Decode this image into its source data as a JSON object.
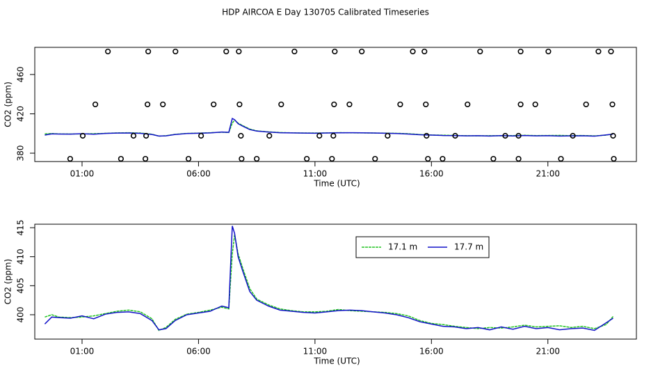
{
  "chart_data": [
    {
      "type": "line",
      "title": "HDP AIRCOA E  Day 130705  Calibrated Timeseries",
      "x_label": "Time (UTC)",
      "y_label": "CO2 (ppm)",
      "xlim": [
        -1.03,
        24.8
      ],
      "xticks": [
        {
          "value": 1,
          "label": "01:00"
        },
        {
          "value": 6,
          "label": "06:00"
        },
        {
          "value": 11,
          "label": "11:00"
        },
        {
          "value": 16,
          "label": "16:00"
        },
        {
          "value": 21,
          "label": "21:00"
        }
      ],
      "ylim": [
        371.5,
        487.6
      ],
      "yticks": [
        380,
        420,
        460
      ],
      "x": [
        -0.6,
        -0.3,
        0,
        0.5,
        1,
        1.5,
        2,
        2.5,
        3,
        3.5,
        4,
        4.3,
        4.6,
        5,
        5.5,
        6,
        6.5,
        7,
        7.3,
        7.45,
        7.55,
        7.7,
        7.9,
        8.2,
        8.5,
        9,
        9.5,
        10,
        10.5,
        11,
        11.5,
        12,
        12.5,
        13,
        13.5,
        14,
        14.5,
        15,
        15.5,
        16,
        16.5,
        17,
        17.5,
        18,
        18.5,
        19,
        19.5,
        20,
        20.5,
        21,
        21.5,
        22,
        22.5,
        23,
        23.5,
        23.8
      ],
      "series": [
        {
          "color": "#22c322",
          "values": [
            399.6,
            400.0,
            399.6,
            399.5,
            399.6,
            399.8,
            400.2,
            400.6,
            400.8,
            400.5,
            399.3,
            397.3,
            397.8,
            399.2,
            400.1,
            400.4,
            400.8,
            401.3,
            401.0,
            410.5,
            413.8,
            410.5,
            408.0,
            404.5,
            402.7,
            401.7,
            401.0,
            400.7,
            400.5,
            400.5,
            400.6,
            400.9,
            400.7,
            400.6,
            400.5,
            400.4,
            400.2,
            399.8,
            399.0,
            398.5,
            398.3,
            398.0,
            397.8,
            397.6,
            397.8,
            397.7,
            397.9,
            398.2,
            397.9,
            398.0,
            398.1,
            397.8,
            398.0,
            397.6,
            398.3,
            399.7
          ]
        },
        {
          "color": "#1010c8",
          "values": [
            398.4,
            399.6,
            399.5,
            399.4,
            399.8,
            399.3,
            400.1,
            400.4,
            400.5,
            400.2,
            399.0,
            397.4,
            397.6,
            399.0,
            400.0,
            400.3,
            400.6,
            401.5,
            401.2,
            415.3,
            414.0,
            410.0,
            407.5,
            404.0,
            402.5,
            401.5,
            400.8,
            400.6,
            400.4,
            400.3,
            400.5,
            400.7,
            400.8,
            400.7,
            400.5,
            400.3,
            400.0,
            399.5,
            398.8,
            398.4,
            398.0,
            397.9,
            397.6,
            397.8,
            397.4,
            397.9,
            397.5,
            398.0,
            397.6,
            397.8,
            397.4,
            397.6,
            397.7,
            397.3,
            398.6,
            399.4
          ]
        }
      ],
      "points": {
        "color": "#000000",
        "x": [
          2.11,
          3.84,
          5.01,
          7.19,
          7.73,
          10.12,
          11.85,
          13.01,
          15.2,
          15.7,
          18.09,
          19.83,
          21.02,
          23.17,
          23.71,
          1.57,
          3.81,
          4.47,
          6.65,
          7.76,
          9.55,
          11.82,
          12.48,
          14.66,
          15.76,
          17.55,
          19.83,
          20.46,
          22.64,
          23.77,
          1.03,
          3.21,
          3.75,
          6.11,
          7.82,
          9.04,
          11.19,
          11.79,
          14.12,
          15.79,
          17.02,
          19.17,
          19.74,
          22.07,
          23.8,
          0.49,
          2.67,
          3.72,
          5.57,
          7.85,
          8.5,
          10.65,
          11.73,
          13.58,
          15.85,
          16.48,
          18.66,
          19.74,
          21.56,
          23.83
        ],
        "y": [
          483.4,
          483.4,
          483.4,
          483.4,
          483.4,
          483.4,
          483.4,
          483.4,
          483.4,
          483.4,
          483.4,
          483.4,
          483.4,
          483.4,
          483.4,
          429.6,
          429.6,
          429.6,
          429.6,
          429.6,
          429.6,
          429.6,
          429.6,
          429.6,
          429.6,
          429.6,
          429.6,
          429.6,
          429.6,
          429.6,
          397.7,
          397.7,
          397.7,
          397.7,
          397.7,
          397.7,
          397.7,
          397.7,
          397.7,
          397.7,
          397.7,
          397.7,
          397.7,
          397.7,
          397.7,
          374.3,
          374.3,
          374.3,
          374.3,
          374.3,
          374.3,
          374.3,
          374.3,
          374.3,
          374.3,
          374.3,
          374.3,
          374.3,
          374.3,
          374.3
        ]
      }
    },
    {
      "type": "line",
      "x_label": "Time (UTC)",
      "y_label": "CO2 (ppm)",
      "legend": "top",
      "xlim": [
        -1.03,
        24.8
      ],
      "xticks": [
        {
          "value": 1,
          "label": "01:00"
        },
        {
          "value": 6,
          "label": "06:00"
        },
        {
          "value": 11,
          "label": "11:00"
        },
        {
          "value": 16,
          "label": "16:00"
        },
        {
          "value": 21,
          "label": "21:00"
        }
      ],
      "ylim": [
        395.8,
        415.6
      ],
      "yticks": [
        400,
        405,
        410,
        415
      ],
      "x": [
        -0.6,
        -0.3,
        0,
        0.5,
        1,
        1.5,
        2,
        2.5,
        3,
        3.5,
        4,
        4.3,
        4.6,
        5,
        5.5,
        6,
        6.5,
        7,
        7.3,
        7.45,
        7.55,
        7.7,
        7.9,
        8.2,
        8.5,
        9,
        9.5,
        10,
        10.5,
        11,
        11.5,
        12,
        12.5,
        13,
        13.5,
        14,
        14.5,
        15,
        15.5,
        16,
        16.5,
        17,
        17.5,
        18,
        18.5,
        19,
        19.5,
        20,
        20.5,
        21,
        21.5,
        22,
        22.5,
        23,
        23.5,
        23.8
      ],
      "series": [
        {
          "name": "17.1 m",
          "color": "#22c322",
          "values": [
            399.6,
            400.0,
            399.6,
            399.5,
            399.6,
            399.8,
            400.2,
            400.6,
            400.8,
            400.5,
            399.3,
            397.3,
            397.8,
            399.2,
            400.1,
            400.4,
            400.8,
            401.3,
            401.0,
            410.5,
            413.8,
            410.5,
            408.0,
            404.5,
            402.7,
            401.7,
            401.0,
            400.7,
            400.5,
            400.5,
            400.6,
            400.9,
            400.7,
            400.6,
            400.5,
            400.4,
            400.2,
            399.8,
            399.0,
            398.5,
            398.3,
            398.0,
            397.8,
            397.6,
            397.8,
            397.7,
            397.9,
            398.2,
            397.9,
            398.0,
            398.1,
            397.8,
            398.0,
            397.6,
            398.3,
            399.7
          ]
        },
        {
          "name": "17.7 m",
          "color": "#1010c8",
          "values": [
            398.4,
            399.6,
            399.5,
            399.4,
            399.8,
            399.3,
            400.1,
            400.4,
            400.5,
            400.2,
            399.0,
            397.4,
            397.6,
            399.0,
            400.0,
            400.3,
            400.6,
            401.5,
            401.2,
            415.3,
            414.0,
            410.0,
            407.5,
            404.0,
            402.5,
            401.5,
            400.8,
            400.6,
            400.4,
            400.3,
            400.5,
            400.7,
            400.8,
            400.7,
            400.5,
            400.3,
            400.0,
            399.5,
            398.8,
            398.4,
            398.0,
            397.9,
            397.6,
            397.8,
            397.4,
            397.9,
            397.5,
            398.0,
            397.6,
            397.8,
            397.4,
            397.6,
            397.7,
            397.3,
            398.6,
            399.4
          ]
        }
      ]
    }
  ]
}
